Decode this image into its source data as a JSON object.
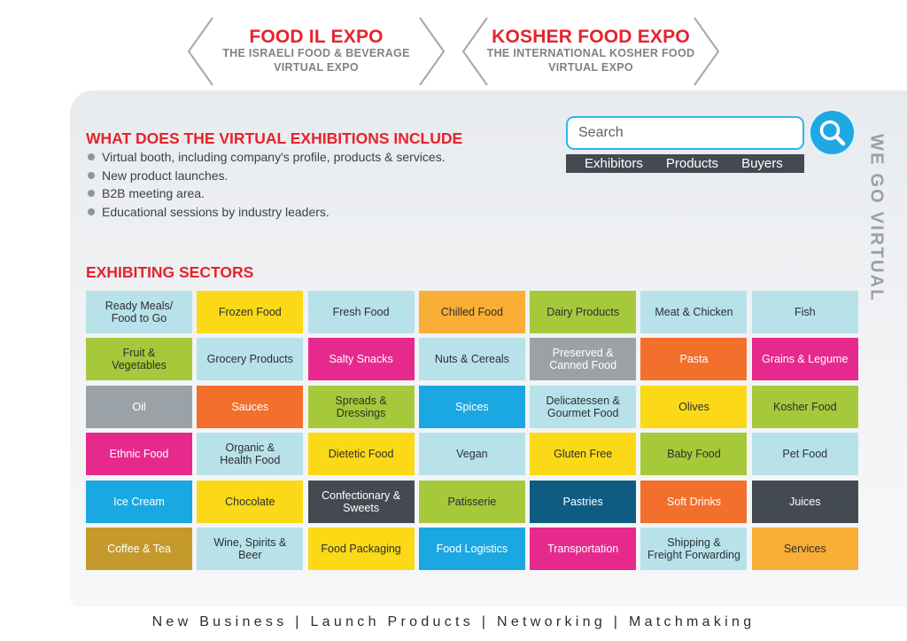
{
  "expos": [
    {
      "title": "FOOD IL EXPO",
      "sub1": "THE ISRAELI FOOD & BEVERAGE",
      "sub2": "VIRTUAL EXPO"
    },
    {
      "title": "KOSHER FOOD EXPO",
      "sub1": "THE INTERNATIONAL KOSHER FOOD",
      "sub2": "VIRTUAL EXPO"
    }
  ],
  "include": {
    "title": "WHAT DOES THE VIRTUAL EXHIBITIONS INCLUDE",
    "items": [
      "Virtual booth, including company's profile, products & services.",
      "New product launches.",
      "B2B meeting area.",
      "Educational sessions by industry leaders."
    ]
  },
  "search": {
    "placeholder": "Search",
    "filters": [
      "Exhibitors",
      "Products",
      "Buyers"
    ]
  },
  "side_text": "WE GO VIRTUAL",
  "sectors": {
    "title": "EXHIBITING SECTORS",
    "tiles": [
      {
        "label": "Ready Meals/\nFood to Go",
        "color": "#b8e2ea"
      },
      {
        "label": "Frozen Food",
        "color": "#fbd917"
      },
      {
        "label": "Fresh Food",
        "color": "#b8e2ea"
      },
      {
        "label": "Chilled Food",
        "color": "#f9ae35"
      },
      {
        "label": "Dairy Products",
        "color": "#a5c93b"
      },
      {
        "label": "Meat & Chicken",
        "color": "#b8e2ea"
      },
      {
        "label": "Fish",
        "color": "#b8e2ea"
      },
      {
        "label": "Fruit &\nVegetables",
        "color": "#a5c93b"
      },
      {
        "label": "Grocery Products",
        "color": "#b8e2ea"
      },
      {
        "label": "Salty Snacks",
        "color": "#e62a8d"
      },
      {
        "label": "Nuts & Cereals",
        "color": "#b8e2ea"
      },
      {
        "label": "Preserved &\nCanned Food",
        "color": "#9aa2a8"
      },
      {
        "label": "Pasta",
        "color": "#f26f2c"
      },
      {
        "label": "Grains & Legume",
        "color": "#e62a8d"
      },
      {
        "label": "Oil",
        "color": "#9aa2a8"
      },
      {
        "label": "Sauces",
        "color": "#f26f2c"
      },
      {
        "label": "Spreads &\nDressings",
        "color": "#a5c93b"
      },
      {
        "label": "Spices",
        "color": "#1ba8e2"
      },
      {
        "label": "Delicatessen &\nGourmet Food",
        "color": "#b8e2ea"
      },
      {
        "label": "Olives",
        "color": "#fbd917"
      },
      {
        "label": "Kosher Food",
        "color": "#a5c93b"
      },
      {
        "label": "Ethnic Food",
        "color": "#e62a8d"
      },
      {
        "label": "Organic &\nHealth Food",
        "color": "#b8e2ea"
      },
      {
        "label": "Dietetic Food",
        "color": "#fbd917"
      },
      {
        "label": "Vegan",
        "color": "#b8e2ea"
      },
      {
        "label": "Gluten Free",
        "color": "#fbd917"
      },
      {
        "label": "Baby Food",
        "color": "#a5c93b"
      },
      {
        "label": "Pet Food",
        "color": "#b8e2ea"
      },
      {
        "label": "Ice Cream",
        "color": "#1ba8e2"
      },
      {
        "label": "Chocolate",
        "color": "#fbd917"
      },
      {
        "label": "Confectionary &\nSweets",
        "color": "#434a52"
      },
      {
        "label": "Patisserie",
        "color": "#a5c93b"
      },
      {
        "label": "Pastries",
        "color": "#0e5c82"
      },
      {
        "label": "Soft Drinks",
        "color": "#f26f2c"
      },
      {
        "label": "Juices",
        "color": "#434a52"
      },
      {
        "label": "Coffee & Tea",
        "color": "#c49a2d"
      },
      {
        "label": "Wine, Spirits &\nBeer",
        "color": "#b8e2ea"
      },
      {
        "label": "Food Packaging",
        "color": "#fbd917"
      },
      {
        "label": "Food Logistics",
        "color": "#1ba8e2"
      },
      {
        "label": "Transportation",
        "color": "#e62a8d"
      },
      {
        "label": "Shipping &\nFreight Forwarding",
        "color": "#b8e2ea"
      },
      {
        "label": "Services",
        "color": "#f9ae35"
      }
    ]
  },
  "footer": "New Business | Launch Products | Networking | Matchmaking"
}
